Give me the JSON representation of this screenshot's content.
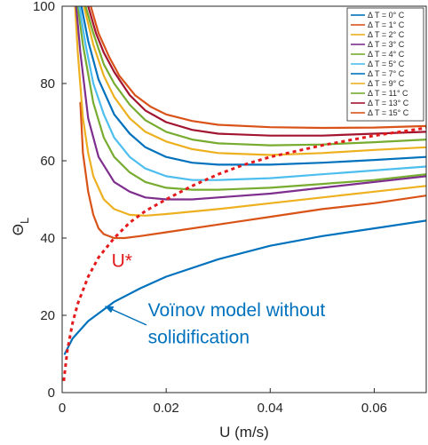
{
  "chart_data": {
    "type": "line",
    "title": "",
    "xlabel": "U (m/s)",
    "ylabel_main": "Θ",
    "ylabel_sub": "L",
    "xlim": [
      0,
      0.07
    ],
    "ylim": [
      0,
      100
    ],
    "xticks": [
      "0",
      "0.02",
      "0.04",
      "0.06"
    ],
    "yticks": [
      "0",
      "20",
      "40",
      "60",
      "80",
      "100"
    ],
    "grid": false,
    "legend_position": "top-right",
    "series": [
      {
        "name": "Δ T = 0° C",
        "color": "#0072BD",
        "values": [
          [
            0.0005,
            10
          ],
          [
            0.002,
            14
          ],
          [
            0.005,
            18.5
          ],
          [
            0.008,
            21.5
          ],
          [
            0.01,
            23.5
          ],
          [
            0.015,
            27
          ],
          [
            0.02,
            30
          ],
          [
            0.03,
            34.5
          ],
          [
            0.04,
            38
          ],
          [
            0.05,
            40.5
          ],
          [
            0.06,
            42.5
          ],
          [
            0.07,
            44.5
          ]
        ]
      },
      {
        "name": "Δ T = 1° C",
        "color": "#D95319",
        "values": [
          [
            0.0035,
            75
          ],
          [
            0.004,
            62
          ],
          [
            0.005,
            52
          ],
          [
            0.006,
            46
          ],
          [
            0.007,
            42.5
          ],
          [
            0.008,
            41
          ],
          [
            0.01,
            40
          ],
          [
            0.012,
            40
          ],
          [
            0.015,
            40.5
          ],
          [
            0.02,
            41.5
          ],
          [
            0.03,
            43.5
          ],
          [
            0.04,
            45.5
          ],
          [
            0.05,
            47.5
          ],
          [
            0.06,
            49
          ],
          [
            0.07,
            51
          ]
        ]
      },
      {
        "name": "Δ T = 2° C",
        "color": "#EDB120",
        "values": [
          [
            0.0025,
            100
          ],
          [
            0.003,
            88
          ],
          [
            0.004,
            71
          ],
          [
            0.005,
            62
          ],
          [
            0.006,
            56
          ],
          [
            0.008,
            50
          ],
          [
            0.01,
            47.5
          ],
          [
            0.013,
            46
          ],
          [
            0.016,
            45.8
          ],
          [
            0.02,
            46.2
          ],
          [
            0.03,
            47.5
          ],
          [
            0.04,
            49
          ],
          [
            0.05,
            50.5
          ],
          [
            0.06,
            52
          ],
          [
            0.07,
            53.5
          ]
        ]
      },
      {
        "name": "Δ T = 3° C",
        "color": "#7E2F8E",
        "values": [
          [
            0.0027,
            100
          ],
          [
            0.0035,
            88
          ],
          [
            0.005,
            71
          ],
          [
            0.007,
            61
          ],
          [
            0.01,
            54.5
          ],
          [
            0.013,
            52
          ],
          [
            0.016,
            50.5
          ],
          [
            0.02,
            50
          ],
          [
            0.025,
            50
          ],
          [
            0.03,
            50.5
          ],
          [
            0.04,
            51.5
          ],
          [
            0.05,
            53
          ],
          [
            0.06,
            54.5
          ],
          [
            0.07,
            56
          ]
        ]
      },
      {
        "name": "Δ T = 4° C",
        "color": "#77AC30",
        "values": [
          [
            0.003,
            100
          ],
          [
            0.004,
            90
          ],
          [
            0.006,
            75
          ],
          [
            0.008,
            66
          ],
          [
            0.01,
            61
          ],
          [
            0.013,
            57
          ],
          [
            0.016,
            54.5
          ],
          [
            0.02,
            53
          ],
          [
            0.025,
            52.5
          ],
          [
            0.03,
            52.5
          ],
          [
            0.04,
            53
          ],
          [
            0.05,
            54
          ],
          [
            0.06,
            55
          ],
          [
            0.07,
            56.5
          ]
        ]
      },
      {
        "name": "Δ T = 5° C",
        "color": "#4DBEEE",
        "values": [
          [
            0.0033,
            100
          ],
          [
            0.0045,
            90
          ],
          [
            0.006,
            80
          ],
          [
            0.008,
            72
          ],
          [
            0.01,
            66
          ],
          [
            0.013,
            61
          ],
          [
            0.016,
            58
          ],
          [
            0.02,
            56
          ],
          [
            0.025,
            55
          ],
          [
            0.03,
            55
          ],
          [
            0.04,
            55.5
          ],
          [
            0.05,
            56.5
          ],
          [
            0.06,
            57.5
          ],
          [
            0.07,
            58.5
          ]
        ]
      },
      {
        "name": "Δ T = 7° C",
        "color": "#0072BD",
        "values": [
          [
            0.0037,
            100
          ],
          [
            0.005,
            91
          ],
          [
            0.007,
            81
          ],
          [
            0.01,
            72
          ],
          [
            0.013,
            67
          ],
          [
            0.016,
            63.5
          ],
          [
            0.02,
            61
          ],
          [
            0.025,
            59.5
          ],
          [
            0.03,
            59
          ],
          [
            0.04,
            59
          ],
          [
            0.05,
            59.5
          ],
          [
            0.06,
            60.2
          ],
          [
            0.07,
            61
          ]
        ]
      },
      {
        "name": "Δ T = 9° C",
        "color": "#EDB120",
        "values": [
          [
            0.0042,
            100
          ],
          [
            0.006,
            90
          ],
          [
            0.008,
            82
          ],
          [
            0.01,
            76.5
          ],
          [
            0.013,
            71
          ],
          [
            0.016,
            67.5
          ],
          [
            0.02,
            65
          ],
          [
            0.025,
            63
          ],
          [
            0.03,
            62
          ],
          [
            0.04,
            61.5
          ],
          [
            0.05,
            62
          ],
          [
            0.06,
            62.8
          ],
          [
            0.07,
            63.5
          ]
        ]
      },
      {
        "name": "Δ T = 11° C",
        "color": "#77AC30",
        "values": [
          [
            0.0045,
            100
          ],
          [
            0.006,
            93
          ],
          [
            0.008,
            85
          ],
          [
            0.01,
            80
          ],
          [
            0.013,
            74.5
          ],
          [
            0.016,
            70.5
          ],
          [
            0.02,
            67.5
          ],
          [
            0.025,
            65.5
          ],
          [
            0.03,
            64.5
          ],
          [
            0.04,
            64
          ],
          [
            0.05,
            64.2
          ],
          [
            0.06,
            64.8
          ],
          [
            0.07,
            65.5
          ]
        ]
      },
      {
        "name": "Δ T = 13° C",
        "color": "#A2142F",
        "values": [
          [
            0.005,
            100
          ],
          [
            0.0065,
            93
          ],
          [
            0.008,
            88
          ],
          [
            0.01,
            83
          ],
          [
            0.013,
            77
          ],
          [
            0.016,
            73
          ],
          [
            0.02,
            70
          ],
          [
            0.025,
            68
          ],
          [
            0.03,
            67
          ],
          [
            0.04,
            66.5
          ],
          [
            0.05,
            66.5
          ],
          [
            0.06,
            67
          ],
          [
            0.07,
            67.5
          ]
        ]
      },
      {
        "name": "Δ T = 15° C",
        "color": "#D95319",
        "values": [
          [
            0.0055,
            100
          ],
          [
            0.007,
            93
          ],
          [
            0.009,
            87
          ],
          [
            0.011,
            82
          ],
          [
            0.014,
            77
          ],
          [
            0.017,
            74
          ],
          [
            0.02,
            72
          ],
          [
            0.025,
            70.3
          ],
          [
            0.03,
            69.3
          ],
          [
            0.04,
            68.7
          ],
          [
            0.05,
            68.5
          ],
          [
            0.06,
            68.6
          ],
          [
            0.07,
            69
          ]
        ]
      }
    ],
    "ustar_curve": {
      "name": "U*",
      "color": "#E41A1C",
      "values": [
        [
          0.0003,
          3
        ],
        [
          0.001,
          11
        ],
        [
          0.002,
          18
        ],
        [
          0.003,
          23
        ],
        [
          0.005,
          30
        ],
        [
          0.007,
          35
        ],
        [
          0.01,
          40
        ],
        [
          0.013,
          44
        ],
        [
          0.016,
          47
        ],
        [
          0.02,
          50
        ],
        [
          0.025,
          53.5
        ],
        [
          0.03,
          56.5
        ],
        [
          0.035,
          59
        ],
        [
          0.04,
          61
        ],
        [
          0.05,
          64
        ],
        [
          0.06,
          66.5
        ],
        [
          0.07,
          68.5
        ]
      ]
    },
    "annotations": {
      "ustar_label": {
        "text": "U*",
        "color": "#E41A1C",
        "x": 0.0095,
        "y": 32.5
      },
      "model_label_line1": {
        "text": "Voïnov model without",
        "color": "#0072BD",
        "x": 0.0165,
        "y": 19.8
      },
      "model_label_line2": {
        "text": "solidification",
        "color": "#0072BD",
        "x": 0.0165,
        "y": 12.8
      },
      "arrow": {
        "color": "#0072BD",
        "from": [
          0.0162,
          17.5
        ],
        "to": [
          0.0083,
          22.3
        ]
      }
    }
  }
}
